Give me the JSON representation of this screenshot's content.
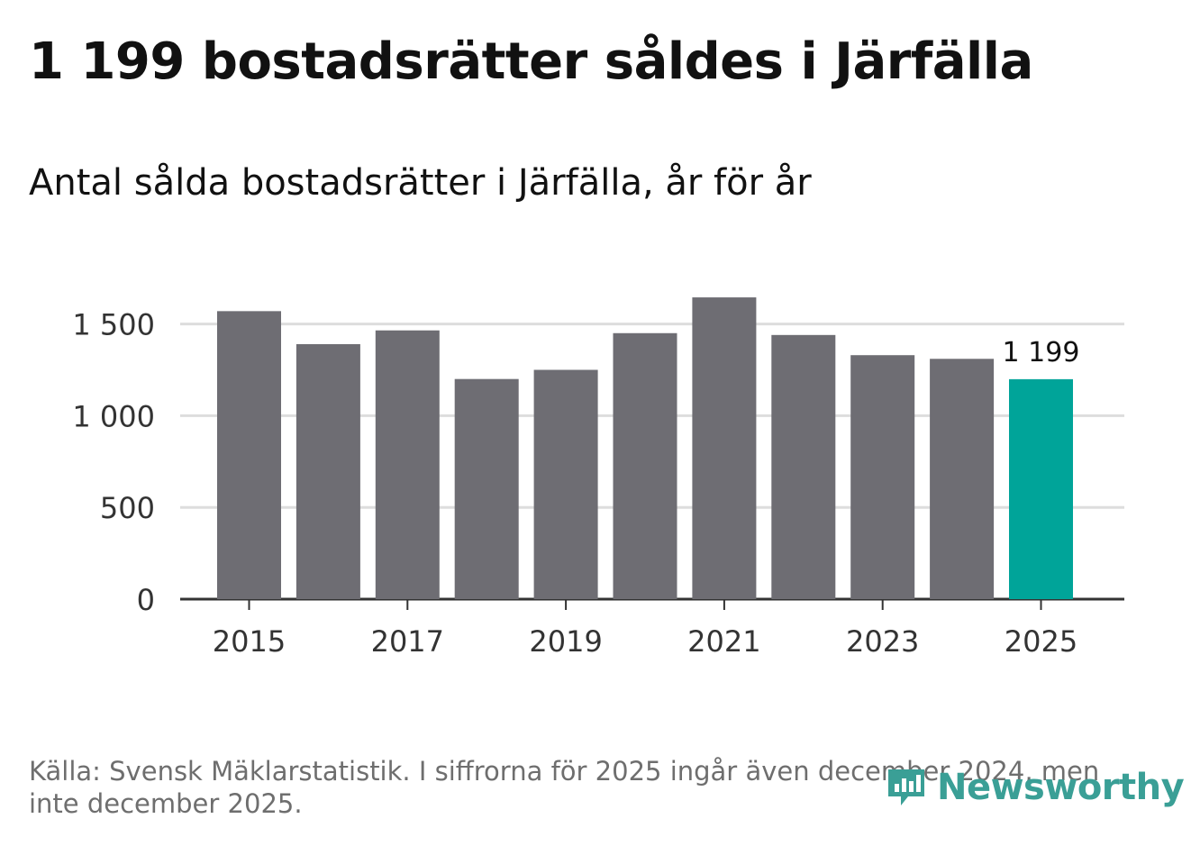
{
  "header": {
    "title": "1 199 bostadsrätter såldes i Järfälla",
    "subtitle": "Antal sålda bostadsrätter i Järfälla, år för år"
  },
  "footer": {
    "source": "Källa: Svensk Mäklarstatistik. I siffrorna för 2025 ingår även december 2024, men inte december 2025.",
    "logo_text": "Newsworthy"
  },
  "colors": {
    "bar": "#6e6d73",
    "highlight": "#00a499",
    "grid": "#dddddd",
    "axis": "#333333",
    "logo": "#3a9f96"
  },
  "chart_data": {
    "type": "bar",
    "title": "1 199 bostadsrätter såldes i Järfälla",
    "subtitle": "Antal sålda bostadsrätter i Järfälla, år för år",
    "xlabel": "",
    "ylabel": "",
    "categories": [
      "2015",
      "2016",
      "2017",
      "2018",
      "2019",
      "2020",
      "2021",
      "2022",
      "2023",
      "2024",
      "2025"
    ],
    "values": [
      1570,
      1390,
      1465,
      1200,
      1250,
      1450,
      1645,
      1440,
      1330,
      1310,
      1199
    ],
    "x_tick_labels": [
      "2015",
      "2017",
      "2019",
      "2021",
      "2023",
      "2025"
    ],
    "y_ticks": [
      0,
      500,
      1000,
      1500
    ],
    "y_tick_labels": [
      "0",
      "500",
      "1 000",
      "1 500"
    ],
    "ylim": [
      0,
      1650
    ],
    "grid": true,
    "highlight_index": 10,
    "data_label": "1 199"
  }
}
